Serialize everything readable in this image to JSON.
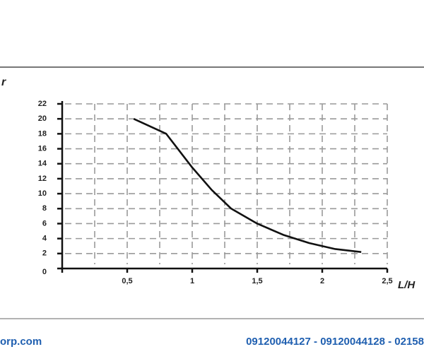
{
  "chart_data": {
    "type": "line",
    "ylabel": "r",
    "xlabel": "L/H",
    "x": [
      0.55,
      0.8,
      1.0,
      1.15,
      1.3,
      1.5,
      1.7,
      1.9,
      2.1,
      2.3
    ],
    "values": [
      20,
      18,
      13.5,
      10.5,
      8,
      6,
      4.5,
      3.4,
      2.6,
      2.2
    ],
    "color": "#111111",
    "xlim": [
      0,
      2.5
    ],
    "ylim": [
      0,
      22
    ],
    "xticks": [
      {
        "value": 0.5,
        "label": "0,5"
      },
      1,
      {
        "value": 1.5,
        "label": "1,5"
      },
      2,
      {
        "value": 2.5,
        "label": "2,5"
      }
    ],
    "x_minor_ticks": [
      0.25,
      0.75,
      1.25,
      1.75,
      2.25
    ],
    "yticks": [
      0,
      2,
      4,
      6,
      8,
      10,
      12,
      14,
      16,
      18,
      20,
      22
    ],
    "grid": true
  },
  "footer": {
    "left": "orp.com",
    "right": "09120044127 - 09120044128 - 02158"
  }
}
